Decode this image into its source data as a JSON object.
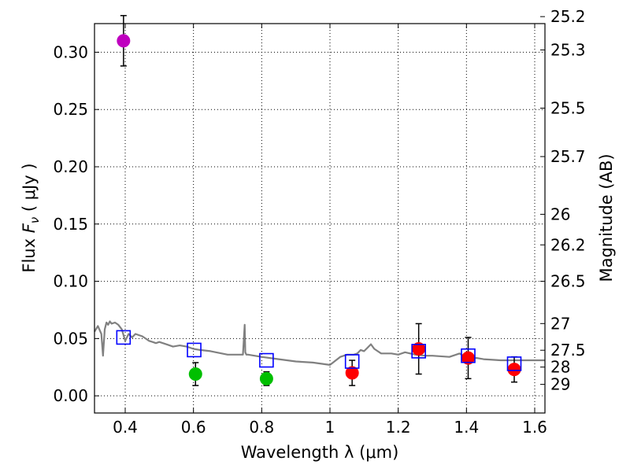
{
  "chart_data": {
    "type": "scatter",
    "xlabel": "Wavelength  λ (μm)",
    "ylabel_prefix": "Flux  ",
    "ylabel_symbol": "F",
    "ylabel_subscript": "ν",
    "ylabel_unit": "  ( μJy )",
    "y2label": "Magnitude (AB)",
    "xlim": [
      0.31,
      1.63
    ],
    "ylim": [
      -0.015,
      0.325
    ],
    "xticks": [
      0.4,
      0.6,
      0.8,
      1.0,
      1.2,
      1.4,
      1.6
    ],
    "xtick_labels": [
      "0.4",
      "0.6",
      "0.8",
      "1",
      "1.2",
      "1.4",
      "1.6"
    ],
    "yticks": [
      0.0,
      0.05,
      0.1,
      0.15,
      0.2,
      0.25,
      0.3
    ],
    "ytick_labels": [
      "0.00",
      "0.05",
      "0.10",
      "0.15",
      "0.20",
      "0.25",
      "0.30"
    ],
    "grid": true,
    "y2_ticks": [
      {
        "label": "25.2",
        "flux": 0.3311
      },
      {
        "label": "25.3",
        "flux": 0.302
      },
      {
        "label": "25.5",
        "flux": 0.2512
      },
      {
        "label": "25.7",
        "flux": 0.2089
      },
      {
        "label": "26",
        "flux": 0.1585
      },
      {
        "label": "26.2",
        "flux": 0.1318
      },
      {
        "label": "26.5",
        "flux": 0.1
      },
      {
        "label": "27",
        "flux": 0.0631
      },
      {
        "label": "27.5",
        "flux": 0.0398
      },
      {
        "label": "28",
        "flux": 0.0251
      },
      {
        "label": "29",
        "flux": 0.01
      }
    ],
    "series": [
      {
        "name": "observed-uv",
        "marker": "circle",
        "color": "#bf00bf",
        "points": [
          {
            "x": 0.395,
            "y": 0.31,
            "err": 0.022
          }
        ]
      },
      {
        "name": "observed-optical",
        "marker": "circle",
        "color": "#00bf00",
        "points": [
          {
            "x": 0.606,
            "y": 0.019,
            "err": 0.01
          },
          {
            "x": 0.814,
            "y": 0.015,
            "err": 0.006
          }
        ]
      },
      {
        "name": "observed-ir",
        "marker": "circle",
        "color": "#ff0000",
        "points": [
          {
            "x": 1.065,
            "y": 0.02,
            "err": 0.011
          },
          {
            "x": 1.26,
            "y": 0.041,
            "err": 0.022
          },
          {
            "x": 1.405,
            "y": 0.033,
            "err": 0.018
          },
          {
            "x": 1.54,
            "y": 0.023,
            "err": 0.011
          }
        ]
      },
      {
        "name": "model-photometry",
        "marker": "square-open",
        "color": "#0000ff",
        "points": [
          {
            "x": 0.395,
            "y": 0.051
          },
          {
            "x": 0.602,
            "y": 0.04
          },
          {
            "x": 0.814,
            "y": 0.031
          },
          {
            "x": 1.065,
            "y": 0.03
          },
          {
            "x": 1.26,
            "y": 0.039
          },
          {
            "x": 1.405,
            "y": 0.035
          },
          {
            "x": 1.54,
            "y": 0.028
          }
        ]
      },
      {
        "name": "model-spectrum",
        "marker": "line",
        "color": "#808080",
        "x": [
          0.31,
          0.32,
          0.33,
          0.335,
          0.34,
          0.345,
          0.35,
          0.355,
          0.36,
          0.37,
          0.38,
          0.39,
          0.4,
          0.41,
          0.42,
          0.43,
          0.44,
          0.45,
          0.46,
          0.47,
          0.48,
          0.49,
          0.5,
          0.52,
          0.54,
          0.56,
          0.58,
          0.6,
          0.62,
          0.65,
          0.7,
          0.745,
          0.75,
          0.752,
          0.755,
          0.76,
          0.8,
          0.85,
          0.9,
          0.95,
          1.0,
          1.03,
          1.05,
          1.07,
          1.08,
          1.09,
          1.1,
          1.11,
          1.12,
          1.13,
          1.15,
          1.18,
          1.2,
          1.22,
          1.25,
          1.28,
          1.3,
          1.35,
          1.38,
          1.4,
          1.43,
          1.45,
          1.5,
          1.55,
          1.6,
          1.63
        ],
        "y": [
          0.056,
          0.061,
          0.054,
          0.035,
          0.058,
          0.064,
          0.062,
          0.065,
          0.063,
          0.064,
          0.062,
          0.058,
          0.048,
          0.054,
          0.051,
          0.054,
          0.053,
          0.052,
          0.05,
          0.048,
          0.047,
          0.046,
          0.047,
          0.045,
          0.043,
          0.044,
          0.043,
          0.041,
          0.04,
          0.039,
          0.036,
          0.036,
          0.062,
          0.038,
          0.036,
          0.036,
          0.034,
          0.032,
          0.03,
          0.029,
          0.027,
          0.034,
          0.036,
          0.036,
          0.037,
          0.04,
          0.039,
          0.042,
          0.045,
          0.041,
          0.037,
          0.037,
          0.036,
          0.038,
          0.036,
          0.035,
          0.035,
          0.034,
          0.037,
          0.033,
          0.033,
          0.032,
          0.031,
          0.031,
          0.031,
          0.031
        ]
      }
    ]
  }
}
